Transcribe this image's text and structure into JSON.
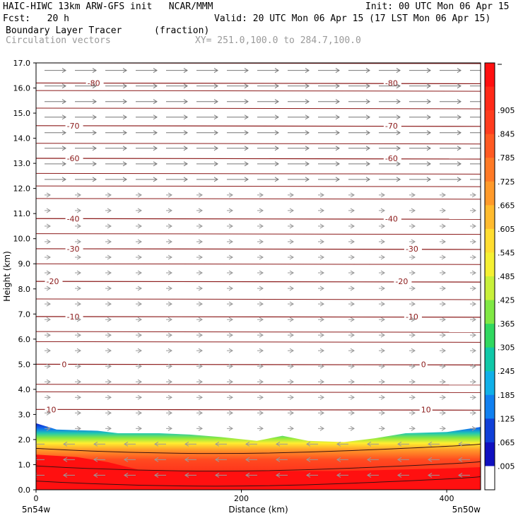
{
  "header": {
    "line1_left": "HAIC-HIWC 13km ARW-GFS init   NCAR/MMM",
    "line1_right": "Init: 00 UTC Mon 06 Apr 15",
    "line2_left": "Fcst:   20 h",
    "line2_right": "Valid: 20 UTC Mon 06 Apr 15 (17 LST Mon 06 Apr 15)",
    "line3_left": "Boundary Layer Tracer",
    "line3_unit": "(fraction)",
    "line4_left": "Circulation vectors",
    "line4_right": "XY= 251.0,100.0 to 284.7,100.0"
  },
  "chart_data": {
    "type": "contour-cross-section",
    "xlabel": "Distance (km)",
    "ylabel": "Height (km)",
    "xlim": [
      0,
      433
    ],
    "ylim": [
      0,
      17
    ],
    "x_ticks": [
      0,
      200,
      400
    ],
    "y_ticks": [
      "0.0",
      "1.0",
      "2.0",
      "3.0",
      "4.0",
      "5.0",
      "6.0",
      "7.0",
      "8.0",
      "9.0",
      "10.0",
      "11.0",
      "12.0",
      "13.0",
      "14.0",
      "15.0",
      "16.0",
      "17.0"
    ],
    "x_end_labels": {
      "left": "5n54w",
      "right": "5n50w"
    },
    "tracer_top_km": [
      [
        0,
        2.65
      ],
      [
        20,
        2.4
      ],
      [
        60,
        2.35
      ],
      [
        80,
        2.25
      ],
      [
        120,
        2.25
      ],
      [
        150,
        2.2
      ],
      [
        180,
        2.1
      ],
      [
        215,
        1.95
      ],
      [
        240,
        2.15
      ],
      [
        265,
        1.95
      ],
      [
        300,
        1.9
      ],
      [
        330,
        2.05
      ],
      [
        360,
        2.25
      ],
      [
        400,
        2.3
      ],
      [
        433,
        2.5
      ]
    ],
    "red_top_km": [
      [
        0,
        1.4
      ],
      [
        40,
        1.3
      ],
      [
        70,
        1.1
      ],
      [
        100,
        0.8
      ],
      [
        150,
        0.75
      ],
      [
        200,
        0.75
      ],
      [
        250,
        0.75
      ],
      [
        300,
        0.75
      ],
      [
        350,
        0.8
      ],
      [
        400,
        0.85
      ],
      [
        433,
        0.9
      ]
    ],
    "temperature_contours": [
      {
        "label": "-80",
        "km": 16.2,
        "label_x": [
          50,
          340
        ]
      },
      {
        "label": "-70",
        "km": 14.5,
        "label_x": [
          30,
          340
        ]
      },
      {
        "label": "-60",
        "km": 13.2,
        "label_x": [
          30,
          340
        ]
      },
      {
        "label": "-40",
        "km": 10.8,
        "label_x": [
          30,
          340
        ]
      },
      {
        "label": "-30",
        "km": 9.6,
        "label_x": [
          30,
          360
        ]
      },
      {
        "label": "-20",
        "km": 8.3,
        "label_x": [
          10,
          350
        ]
      },
      {
        "label": "-10",
        "km": 6.9,
        "label_x": [
          30,
          360
        ]
      },
      {
        "label": "0",
        "km": 5.0,
        "label_x": [
          25,
          375
        ]
      },
      {
        "label": "10",
        "km": 3.2,
        "label_x": [
          10,
          375
        ]
      }
    ],
    "colorbar": {
      "labels": [
        ".905",
        ".845",
        ".785",
        ".725",
        ".665",
        ".605",
        ".545",
        ".485",
        ".425",
        ".365",
        ".305",
        ".245",
        ".185",
        ".125",
        ".065",
        ".005"
      ],
      "colors": [
        "#ff1010",
        "#ff2a18",
        "#ff3c1e",
        "#ff5a22",
        "#ff7a26",
        "#ff9a2a",
        "#ffbb2e",
        "#ffdd30",
        "#f5f032",
        "#c8f03a",
        "#80e844",
        "#30d860",
        "#10c8a8",
        "#10b0e8",
        "#1080f0",
        "#1040d8",
        "#1010c0",
        "#ffffff"
      ]
    },
    "wind_upper": "strong westerly (left-to-right) above 12 km",
    "wind_lower": "easterly (right-to-left) in boundary layer below 2 km"
  }
}
